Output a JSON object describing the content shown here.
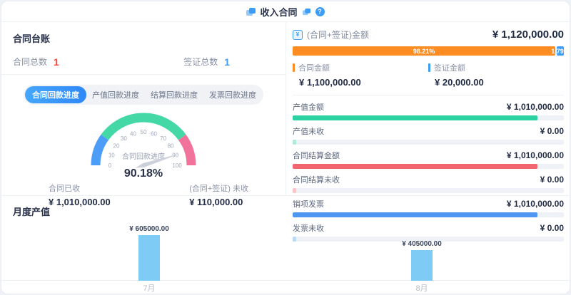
{
  "header": {
    "title": "收入合同"
  },
  "ledger": {
    "title": "合同台账",
    "stats": [
      {
        "label": "合同总数",
        "value": "1",
        "color": "#f5483b"
      },
      {
        "label": "签证总数",
        "value": "1",
        "color": "#3d9df6"
      }
    ]
  },
  "progress_tabs": {
    "active_index": 0,
    "items": [
      "合同回款进度",
      "产值回款进度",
      "结算回款进度",
      "发票回款进度"
    ]
  },
  "gauge_panel": {
    "received_label": "合同已收",
    "received_value": "¥ 1,010,000.00",
    "unreceived_label": "(合同+签证) 未收",
    "unreceived_value": "¥ 110,000.00"
  },
  "summary": {
    "title": "(合同+签证)金额",
    "total": "¥ 1,120,000.00",
    "stacked_bar": {
      "segments": [
        {
          "label": "98.21%",
          "percent": 98.21,
          "color": "#fd8d22"
        },
        {
          "label": "1.79%",
          "percent": 1.79,
          "color": "#3d9df6"
        }
      ]
    },
    "legend": [
      {
        "label": "合同金额",
        "value": "¥ 1,100,000.00",
        "color": "#fd8d22"
      },
      {
        "label": "签证金额",
        "value": "¥ 20,000.00",
        "color": "#3d9df6"
      }
    ],
    "rows": [
      {
        "label": "产值金额",
        "value": "¥ 1,010,000.00",
        "percent": 90.18,
        "color": "#2bd2a2"
      },
      {
        "label": "产值未收",
        "value": "¥ 0.00",
        "percent": 1.2,
        "color": "#aee9d9"
      },
      {
        "label": "合同结算金额",
        "value": "¥ 1,010,000.00",
        "percent": 90.18,
        "color": "#f2646e"
      },
      {
        "label": "合同结算未收",
        "value": "¥ 0.00",
        "percent": 1.2,
        "color": "#f8c5c9"
      },
      {
        "label": "销项发票",
        "value": "¥ 1,010,000.00",
        "percent": 90.18,
        "color": "#4e96f2"
      },
      {
        "label": "发票未收",
        "value": "¥ 0.00",
        "percent": 1.2,
        "color": "#bdd9f8"
      }
    ]
  },
  "monthly": {
    "title": "月度产值"
  },
  "chart_data": [
    {
      "type": "gauge",
      "title": "合同回款进度",
      "value": 90.18,
      "value_label": "90.18%",
      "min": 0,
      "max": 100,
      "ticks": [
        0,
        10,
        20,
        30,
        40,
        50,
        60,
        70,
        80,
        90,
        100
      ],
      "segments": [
        {
          "from": 0,
          "to": 20,
          "color": "#4b9df8"
        },
        {
          "from": 20,
          "to": 80,
          "color": "#43d8a5"
        },
        {
          "from": 80,
          "to": 100,
          "color": "#f1729b"
        }
      ],
      "needle_color": "#ccd1d9"
    },
    {
      "type": "bar",
      "title": "月度产值",
      "categories": [
        "7月",
        "8月"
      ],
      "values": [
        605000,
        405000
      ],
      "data_labels": [
        "¥ 605000.00",
        "¥ 405000.00"
      ],
      "bar_color": "#7ecbf5",
      "ylim": [
        0,
        620000
      ],
      "grid": false,
      "legend_position": "none"
    }
  ]
}
